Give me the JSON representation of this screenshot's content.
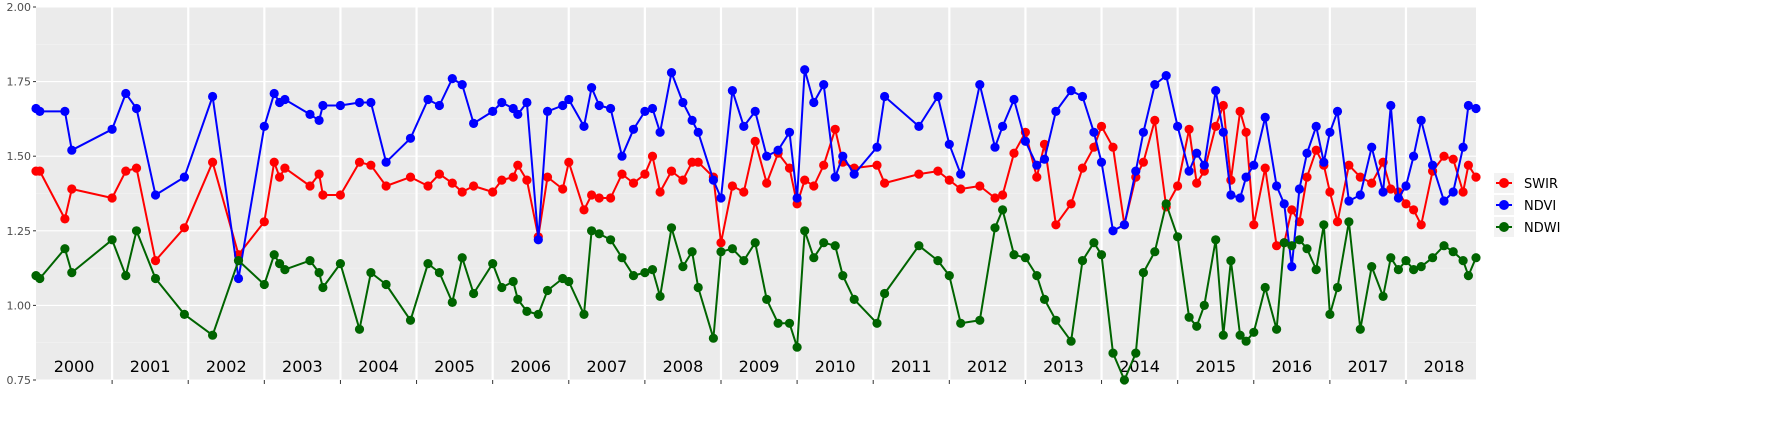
{
  "chart_data": {
    "type": "line",
    "title": "",
    "xlabel": "",
    "ylabel": "",
    "x_range": [
      2000.0,
      2018.92
    ],
    "ylim": [
      0.75,
      2.0
    ],
    "y_ticks": [
      "0.75",
      "1.00",
      "1.25",
      "1.50",
      "1.75",
      "2.00"
    ],
    "year_labels": [
      "2000",
      "2001",
      "2002",
      "2003",
      "2004",
      "2005",
      "2006",
      "2007",
      "2008",
      "2009",
      "2010",
      "2011",
      "2012",
      "2013",
      "2014",
      "2015",
      "2016",
      "2017",
      "2018"
    ],
    "grid": true,
    "legend_position": "right",
    "legend": [
      "SWIR",
      "NDVI",
      "NDWI"
    ],
    "colors": {
      "SWIR": "#ff0000",
      "NDVI": "#0000ff",
      "NDWI": "#006400"
    },
    "x": [
      2000.0,
      2000.05,
      2000.38,
      2000.47,
      2001.0,
      2001.18,
      2001.32,
      2001.57,
      2001.95,
      2002.32,
      2002.66,
      2003.0,
      2003.13,
      2003.2,
      2003.27,
      2003.6,
      2003.72,
      2003.77,
      2004.0,
      2004.25,
      2004.4,
      2004.6,
      2004.92,
      2005.15,
      2005.3,
      2005.47,
      2005.6,
      2005.75,
      2006.0,
      2006.12,
      2006.27,
      2006.33,
      2006.45,
      2006.6,
      2006.72,
      2006.92,
      2007.0,
      2007.2,
      2007.3,
      2007.4,
      2007.55,
      2007.7,
      2007.85,
      2008.0,
      2008.1,
      2008.2,
      2008.35,
      2008.5,
      2008.62,
      2008.7,
      2008.9,
      2009.0,
      2009.15,
      2009.3,
      2009.45,
      2009.6,
      2009.75,
      2009.9,
      2010.0,
      2010.1,
      2010.22,
      2010.35,
      2010.5,
      2010.6,
      2010.75,
      2011.05,
      2011.15,
      2011.6,
      2011.85,
      2012.0,
      2012.15,
      2012.4,
      2012.6,
      2012.7,
      2012.85,
      2013.0,
      2013.15,
      2013.25,
      2013.4,
      2013.6,
      2013.75,
      2013.9,
      2014.0,
      2014.15,
      2014.3,
      2014.45,
      2014.55,
      2014.7,
      2014.85,
      2015.0,
      2015.15,
      2015.25,
      2015.35,
      2015.5,
      2015.6,
      2015.7,
      2015.82,
      2015.9,
      2016.0,
      2016.15,
      2016.3,
      2016.4,
      2016.5,
      2016.6,
      2016.7,
      2016.82,
      2016.92,
      2017.0,
      2017.1,
      2017.25,
      2017.4,
      2017.55,
      2017.7,
      2017.8,
      2017.9,
      2018.0,
      2018.1,
      2018.2,
      2018.35,
      2018.5,
      2018.62,
      2018.75,
      2018.82,
      2018.92
    ],
    "series": [
      {
        "name": "SWIR",
        "values": [
          1.45,
          1.45,
          1.29,
          1.39,
          1.36,
          1.45,
          1.46,
          1.15,
          1.26,
          1.48,
          1.17,
          1.28,
          1.48,
          1.43,
          1.46,
          1.4,
          1.44,
          1.37,
          1.37,
          1.48,
          1.47,
          1.4,
          1.43,
          1.4,
          1.44,
          1.41,
          1.38,
          1.4,
          1.38,
          1.42,
          1.43,
          1.47,
          1.42,
          1.23,
          1.43,
          1.39,
          1.48,
          1.32,
          1.37,
          1.36,
          1.36,
          1.44,
          1.41,
          1.44,
          1.5,
          1.38,
          1.45,
          1.42,
          1.48,
          1.48,
          1.43,
          1.21,
          1.4,
          1.38,
          1.55,
          1.41,
          1.51,
          1.46,
          1.34,
          1.42,
          1.4,
          1.47,
          1.59,
          1.48,
          1.46,
          1.47,
          1.41,
          1.44,
          1.45,
          1.42,
          1.39,
          1.4,
          1.36,
          1.37,
          1.51,
          1.58,
          1.43,
          1.54,
          1.27,
          1.34,
          1.46,
          1.53,
          1.6,
          1.53,
          1.27,
          1.43,
          1.48,
          1.62,
          1.33,
          1.4,
          1.59,
          1.41,
          1.45,
          1.6,
          1.67,
          1.42,
          1.65,
          1.58,
          1.27,
          1.46,
          1.2,
          1.21,
          1.32,
          1.28,
          1.43,
          1.52,
          1.47,
          1.38,
          1.28,
          1.47,
          1.43,
          1.41,
          1.48,
          1.39,
          1.38,
          1.34,
          1.32,
          1.27,
          1.45,
          1.5,
          1.49,
          1.38,
          1.47,
          1.43
        ]
      },
      {
        "name": "NDVI",
        "values": [
          1.66,
          1.65,
          1.65,
          1.52,
          1.59,
          1.71,
          1.66,
          1.37,
          1.43,
          1.7,
          1.09,
          1.6,
          1.71,
          1.68,
          1.69,
          1.64,
          1.62,
          1.67,
          1.67,
          1.68,
          1.68,
          1.48,
          1.56,
          1.69,
          1.67,
          1.76,
          1.74,
          1.61,
          1.65,
          1.68,
          1.66,
          1.64,
          1.68,
          1.22,
          1.65,
          1.67,
          1.69,
          1.6,
          1.73,
          1.67,
          1.66,
          1.5,
          1.59,
          1.65,
          1.66,
          1.58,
          1.78,
          1.68,
          1.62,
          1.58,
          1.42,
          1.36,
          1.72,
          1.6,
          1.65,
          1.5,
          1.52,
          1.58,
          1.36,
          1.79,
          1.68,
          1.74,
          1.43,
          1.5,
          1.44,
          1.53,
          1.7,
          1.6,
          1.7,
          1.54,
          1.44,
          1.74,
          1.53,
          1.6,
          1.69,
          1.55,
          1.47,
          1.49,
          1.65,
          1.72,
          1.7,
          1.58,
          1.48,
          1.25,
          1.27,
          1.45,
          1.58,
          1.74,
          1.77,
          1.6,
          1.45,
          1.51,
          1.47,
          1.72,
          1.58,
          1.37,
          1.36,
          1.43,
          1.47,
          1.63,
          1.4,
          1.34,
          1.13,
          1.39,
          1.51,
          1.6,
          1.48,
          1.58,
          1.65,
          1.35,
          1.37,
          1.53,
          1.38,
          1.67,
          1.36,
          1.4,
          1.5,
          1.62,
          1.47,
          1.35,
          1.38,
          1.53,
          1.67,
          1.66
        ]
      },
      {
        "name": "NDWI",
        "values": [
          1.1,
          1.09,
          1.19,
          1.11,
          1.22,
          1.1,
          1.25,
          1.09,
          0.97,
          0.9,
          1.15,
          1.07,
          1.17,
          1.14,
          1.12,
          1.15,
          1.11,
          1.06,
          1.14,
          0.92,
          1.11,
          1.07,
          0.95,
          1.14,
          1.11,
          1.01,
          1.16,
          1.04,
          1.14,
          1.06,
          1.08,
          1.02,
          0.98,
          0.97,
          1.05,
          1.09,
          1.08,
          0.97,
          1.25,
          1.24,
          1.22,
          1.16,
          1.1,
          1.11,
          1.12,
          1.03,
          1.26,
          1.13,
          1.18,
          1.06,
          0.89,
          1.18,
          1.19,
          1.15,
          1.21,
          1.02,
          0.94,
          0.94,
          0.86,
          1.25,
          1.16,
          1.21,
          1.2,
          1.1,
          1.02,
          0.94,
          1.04,
          1.2,
          1.15,
          1.1,
          0.94,
          0.95,
          1.26,
          1.32,
          1.17,
          1.16,
          1.1,
          1.02,
          0.95,
          0.88,
          1.15,
          1.21,
          1.17,
          0.84,
          0.75,
          0.84,
          1.11,
          1.18,
          1.34,
          1.23,
          0.96,
          0.93,
          1.0,
          1.22,
          0.9,
          1.15,
          0.9,
          0.88,
          0.91,
          1.06,
          0.92,
          1.21,
          1.2,
          1.22,
          1.19,
          1.12,
          1.27,
          0.97,
          1.06,
          1.28,
          0.92,
          1.13,
          1.03,
          1.16,
          1.12,
          1.15,
          1.12,
          1.13,
          1.16,
          1.2,
          1.18,
          1.15,
          1.1,
          1.16
        ]
      }
    ]
  }
}
